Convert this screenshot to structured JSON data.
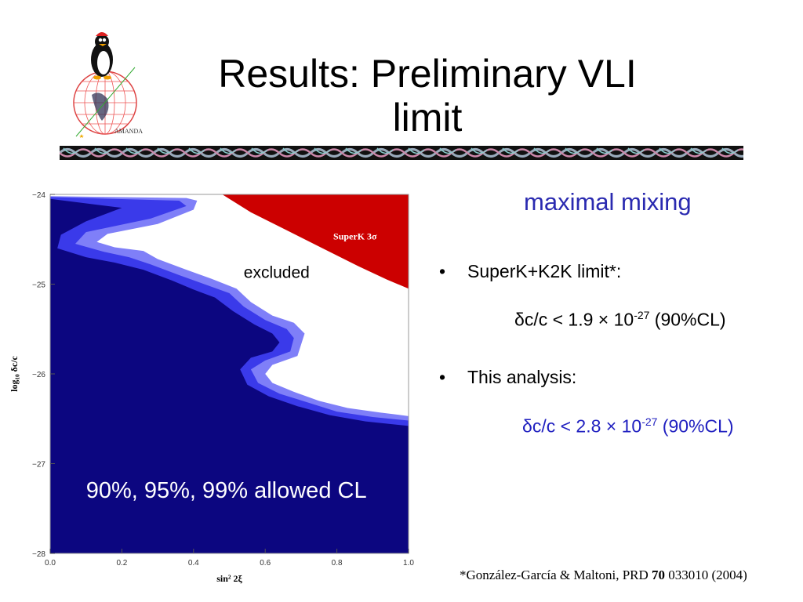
{
  "slide": {
    "title_line1": "Results: Preliminary VLI",
    "title_line2": "limit",
    "logo_text": "AMANDA",
    "subtitle": "maximal mixing",
    "bullets": [
      {
        "marker": "•",
        "text": "SuperK+K2K limit*:",
        "formula": {
          "delta": "δ",
          "pre": "c/c < 1.9 × 10",
          "exp": "-27",
          "post": " (90%CL)"
        }
      },
      {
        "marker": "•",
        "text": "This analysis:",
        "formula": {
          "delta": "δ",
          "pre": "c/c < 2.8 × 10",
          "exp": "-27",
          "post": " (90%CL)"
        }
      }
    ],
    "reference": {
      "pre": "*González-García & Maltoni, PRD ",
      "bold": "70",
      "post": " 033010 (2004)"
    },
    "colors": {
      "subtitle": "#2a2ab0",
      "formula_highlight": "#2020c0"
    }
  },
  "chart_data": {
    "type": "contour",
    "xlabel": "sin² 2ξ",
    "ylabel": "log₁₀ δc/c",
    "xlim": [
      0.0,
      1.0
    ],
    "ylim": [
      -28,
      -24
    ],
    "x_ticks": [
      "0.0",
      "0.2",
      "0.4",
      "0.6",
      "0.8",
      "1.0"
    ],
    "y_ticks": [
      "−24",
      "−25",
      "−26",
      "−27",
      "−28"
    ],
    "annotations": {
      "excluded": "excluded",
      "allowed": "90%, 95%, 99% allowed CL",
      "superk": "SuperK 3σ"
    },
    "colors": {
      "cl90": "#0c0680",
      "cl95": "#3a3aea",
      "cl99": "#7f7ff8",
      "superk": "#cc0000"
    },
    "regions": {
      "cl99_boundary": [
        [
          0.0,
          -24.02
        ],
        [
          0.38,
          -24.04
        ],
        [
          0.41,
          -24.07
        ],
        [
          0.4,
          -24.17
        ],
        [
          0.3,
          -24.33
        ],
        [
          0.16,
          -24.44
        ],
        [
          0.13,
          -24.53
        ],
        [
          0.18,
          -24.59
        ],
        [
          0.26,
          -24.63
        ],
        [
          0.3,
          -24.72
        ],
        [
          0.38,
          -24.84
        ],
        [
          0.45,
          -24.94
        ],
        [
          0.52,
          -25.05
        ],
        [
          0.56,
          -25.2
        ],
        [
          0.62,
          -25.35
        ],
        [
          0.68,
          -25.43
        ],
        [
          0.71,
          -25.55
        ],
        [
          0.69,
          -25.8
        ],
        [
          0.62,
          -25.9
        ],
        [
          0.6,
          -26.0
        ],
        [
          0.62,
          -26.1
        ],
        [
          0.68,
          -26.2
        ],
        [
          0.75,
          -26.3
        ],
        [
          0.83,
          -26.38
        ],
        [
          0.92,
          -26.43
        ],
        [
          1.0,
          -26.47
        ]
      ],
      "cl95_boundary": [
        [
          0.0,
          -24.03
        ],
        [
          0.36,
          -24.07
        ],
        [
          0.38,
          -24.13
        ],
        [
          0.28,
          -24.27
        ],
        [
          0.1,
          -24.42
        ],
        [
          0.07,
          -24.55
        ],
        [
          0.15,
          -24.64
        ],
        [
          0.22,
          -24.7
        ],
        [
          0.28,
          -24.78
        ],
        [
          0.36,
          -24.9
        ],
        [
          0.43,
          -25.0
        ],
        [
          0.5,
          -25.1
        ],
        [
          0.54,
          -25.25
        ],
        [
          0.6,
          -25.4
        ],
        [
          0.66,
          -25.5
        ],
        [
          0.68,
          -25.6
        ],
        [
          0.67,
          -25.75
        ],
        [
          0.6,
          -25.85
        ],
        [
          0.56,
          -25.95
        ],
        [
          0.58,
          -26.1
        ],
        [
          0.64,
          -26.22
        ],
        [
          0.72,
          -26.32
        ],
        [
          0.8,
          -26.42
        ],
        [
          0.9,
          -26.48
        ],
        [
          1.0,
          -26.52
        ]
      ],
      "cl90_boundary": [
        [
          0.0,
          -24.05
        ],
        [
          0.2,
          -24.15
        ],
        [
          0.1,
          -24.3
        ],
        [
          0.03,
          -24.45
        ],
        [
          0.02,
          -24.6
        ],
        [
          0.1,
          -24.7
        ],
        [
          0.18,
          -24.76
        ],
        [
          0.26,
          -24.84
        ],
        [
          0.34,
          -24.96
        ],
        [
          0.4,
          -25.06
        ],
        [
          0.46,
          -25.15
        ],
        [
          0.51,
          -25.3
        ],
        [
          0.57,
          -25.45
        ],
        [
          0.62,
          -25.55
        ],
        [
          0.64,
          -25.65
        ],
        [
          0.62,
          -25.75
        ],
        [
          0.56,
          -25.82
        ],
        [
          0.53,
          -25.95
        ],
        [
          0.55,
          -26.12
        ],
        [
          0.61,
          -26.25
        ],
        [
          0.69,
          -26.36
        ],
        [
          0.78,
          -26.46
        ],
        [
          0.88,
          -26.53
        ],
        [
          1.0,
          -26.58
        ]
      ],
      "superk_boundary": [
        [
          0.48,
          -24.0
        ],
        [
          0.56,
          -24.2
        ],
        [
          0.66,
          -24.4
        ],
        [
          0.76,
          -24.6
        ],
        [
          0.86,
          -24.8
        ],
        [
          0.94,
          -24.95
        ],
        [
          1.0,
          -25.05
        ]
      ]
    }
  }
}
